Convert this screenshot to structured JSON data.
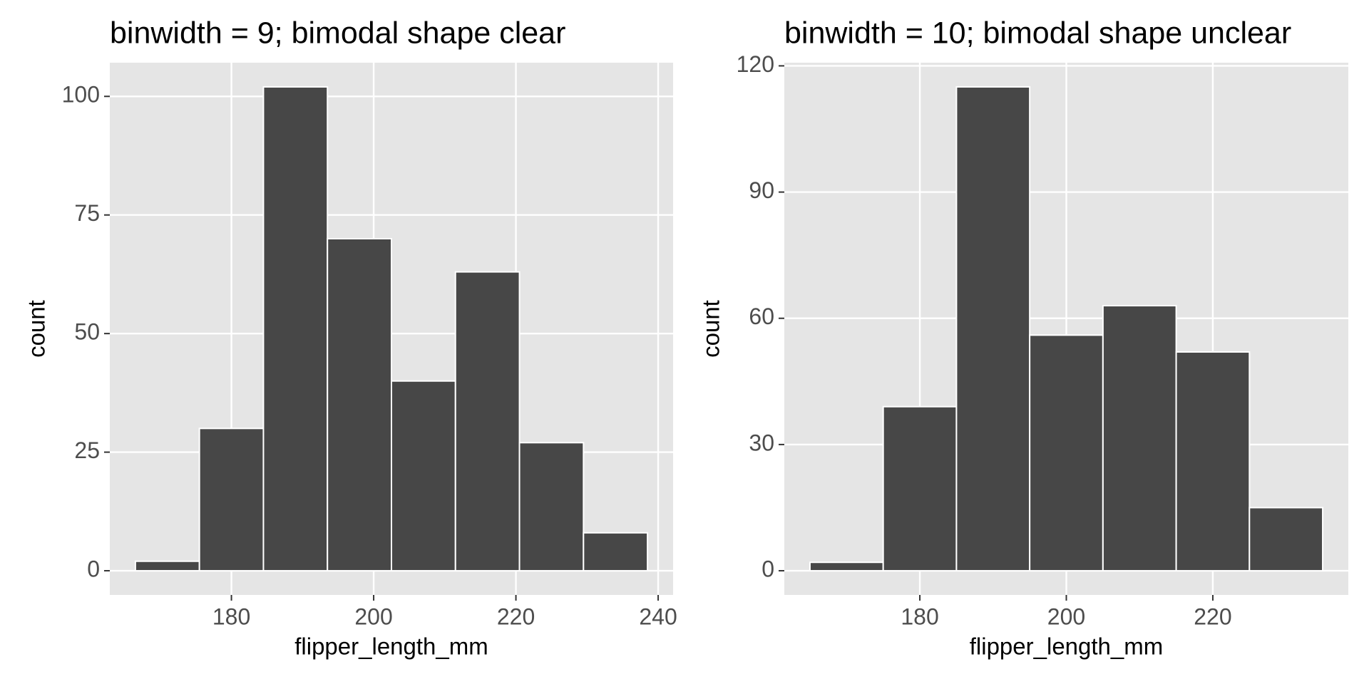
{
  "chart_data": [
    {
      "type": "histogram",
      "title": "binwidth = 9; bimodal shape clear",
      "xlabel": "flipper_length_mm",
      "ylabel": "count",
      "bins": [
        166.5,
        175.5,
        184.5,
        193.5,
        202.5,
        211.5,
        220.5,
        229.5,
        238.5
      ],
      "values": [
        2,
        30,
        102,
        70,
        40,
        63,
        27,
        8
      ],
      "color": "#474747",
      "edgecolor": "#ffffff",
      "background": "#e5e5e5",
      "grid": true,
      "xlim": [
        162.9,
        242.1
      ],
      "xticks": [
        180,
        200,
        220,
        240
      ],
      "ylim": [
        -5.1,
        107.1
      ],
      "yticks": [
        0,
        25,
        50,
        75,
        100
      ]
    },
    {
      "type": "histogram",
      "title": "binwidth = 10; bimodal shape unclear",
      "xlabel": "flipper_length_mm",
      "ylabel": "count",
      "bins": [
        165,
        175,
        185,
        195,
        205,
        215,
        225,
        235
      ],
      "values": [
        2,
        39,
        115,
        56,
        63,
        52,
        15
      ],
      "color": "#474747",
      "edgecolor": "#ffffff",
      "background": "#e5e5e5",
      "grid": true,
      "xlim": [
        161.5,
        238.5
      ],
      "xticks": [
        180,
        200,
        220
      ],
      "ylim": [
        -5.75,
        120.75
      ],
      "yticks": [
        0,
        30,
        60,
        90,
        120
      ]
    }
  ]
}
